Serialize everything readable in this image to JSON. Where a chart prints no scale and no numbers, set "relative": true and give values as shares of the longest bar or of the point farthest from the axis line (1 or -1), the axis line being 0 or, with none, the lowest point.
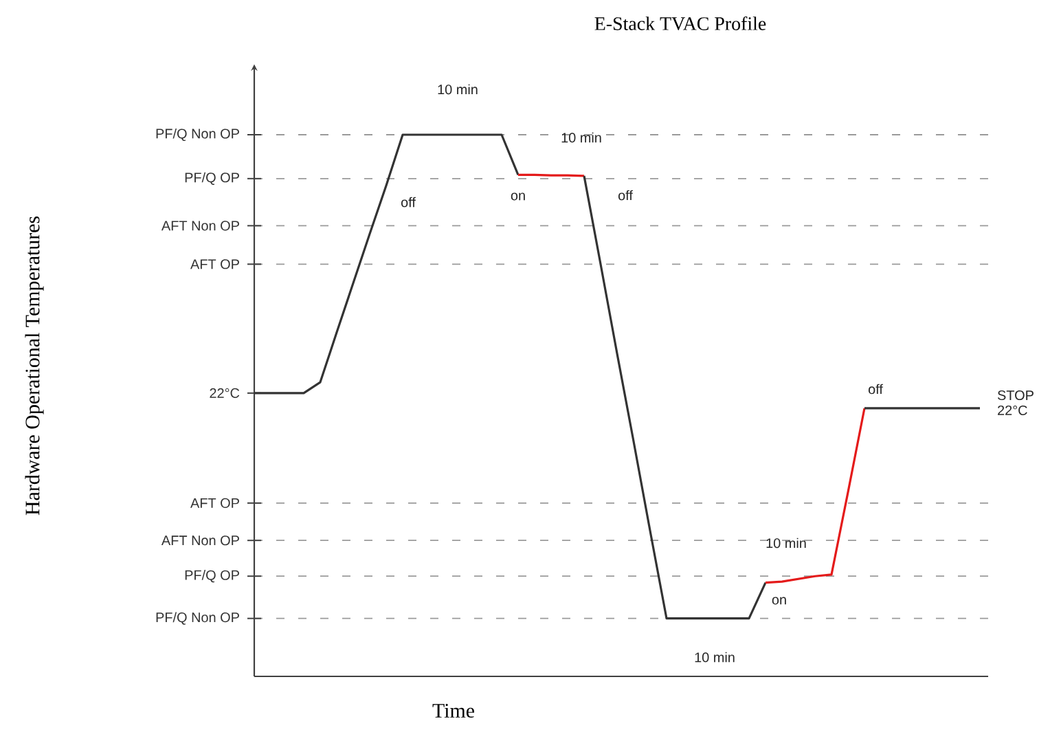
{
  "chart_data": {
    "type": "line",
    "title": "E-Stack TVAC Profile",
    "xlabel": "Time",
    "relative": true,
    "line_style": "solid",
    "categories": [
      null,
      null,
      null,
      null,
      null,
      null,
      null,
      null,
      null,
      null,
      null,
      null,
      null,
      null,
      null,
      null,
      null,
      null,
      null,
      null,
      null,
      null,
      null,
      null,
      null,
      null,
      null,
      null,
      null,
      null,
      null,
      null,
      null,
      null,
      null,
      null,
      null,
      null,
      null,
      null,
      null,
      null,
      null,
      null,
      null
    ],
    "series": [
      {
        "color": "#333333",
        "values": [
          0.523,
          0.523,
          0.523,
          0.523,
          0.543,
          0.635,
          0.726,
          0.817,
          0.906,
          1.0,
          1.0,
          1.0,
          1.0,
          1.0,
          1.0,
          1.0,
          0.926,
          null,
          null,
          null,
          null,
          null,
          null,
          null,
          null,
          null,
          null,
          null,
          null,
          null,
          null,
          null,
          null,
          null,
          null,
          null,
          null,
          null,
          null,
          null,
          null,
          null,
          null,
          null,
          null
        ]
      },
      {
        "color": "#e41a1a",
        "values": [
          null,
          null,
          null,
          null,
          null,
          null,
          null,
          null,
          null,
          null,
          null,
          null,
          null,
          null,
          null,
          null,
          0.926,
          0.926,
          0.925,
          0.925,
          0.924,
          null,
          null,
          null,
          null,
          null,
          null,
          null,
          null,
          null,
          null,
          null,
          null,
          null,
          null,
          null,
          null,
          null,
          null,
          null,
          null,
          null,
          null,
          null,
          null
        ]
      },
      {
        "color": "#333333",
        "values": [
          null,
          null,
          null,
          null,
          null,
          null,
          null,
          null,
          null,
          null,
          null,
          null,
          null,
          null,
          null,
          null,
          null,
          null,
          null,
          null,
          0.924,
          0.761,
          0.596,
          0.434,
          0.269,
          0.107,
          0.107,
          0.107,
          0.107,
          0.107,
          0.107,
          0.173,
          null,
          null,
          null,
          null,
          null,
          null,
          null,
          null,
          null,
          null,
          null,
          null,
          null
        ]
      },
      {
        "color": "#e41a1a",
        "values": [
          null,
          null,
          null,
          null,
          null,
          null,
          null,
          null,
          null,
          null,
          null,
          null,
          null,
          null,
          null,
          null,
          null,
          null,
          null,
          null,
          null,
          null,
          null,
          null,
          null,
          null,
          null,
          null,
          null,
          null,
          null,
          0.173,
          0.175,
          0.18,
          0.185,
          0.188,
          0.34,
          0.495,
          null,
          null,
          null,
          null,
          null,
          null,
          null
        ]
      },
      {
        "color": "#333333",
        "values": [
          null,
          null,
          null,
          null,
          null,
          null,
          null,
          null,
          null,
          null,
          null,
          null,
          null,
          null,
          null,
          null,
          null,
          null,
          null,
          null,
          null,
          null,
          null,
          null,
          null,
          null,
          null,
          null,
          null,
          null,
          null,
          null,
          null,
          null,
          null,
          null,
          null,
          0.495,
          0.495,
          0.495,
          0.495,
          0.495,
          0.495,
          0.495,
          0.495
        ]
      }
    ],
    "ref_lines": [
      {
        "axis": "y",
        "value": 1.0,
        "label": "PF/Q Non OP",
        "color": "#9a9a9a",
        "line_style": "dashed"
      },
      {
        "axis": "y",
        "value": 0.919,
        "label": "PF/Q OP",
        "color": "#9a9a9a",
        "line_style": "dashed"
      },
      {
        "axis": "y",
        "value": 0.832,
        "label": "AFT Non OP",
        "color": "#9a9a9a",
        "line_style": "dashed"
      },
      {
        "axis": "y",
        "value": 0.761,
        "label": "AFT OP",
        "color": "#9a9a9a",
        "line_style": "dashed"
      },
      {
        "axis": "y",
        "value": 0.523,
        "label": "22°C"
      },
      {
        "axis": "y",
        "value": 0.32,
        "label": "AFT OP",
        "color": "#9a9a9a",
        "line_style": "dashed"
      },
      {
        "axis": "y",
        "value": 0.251,
        "label": "AFT Non OP",
        "color": "#9a9a9a",
        "line_style": "dashed"
      },
      {
        "axis": "y",
        "value": 0.185,
        "label": "PF/Q OP",
        "color": "#9a9a9a",
        "line_style": "dashed"
      },
      {
        "axis": "y",
        "value": 0.107,
        "label": "PF/Q Non OP",
        "color": "#9a9a9a",
        "line_style": "dashed"
      }
    ],
    "annotations": [
      "10 min",
      "10 min",
      "off",
      "on",
      "off",
      "10 min",
      "10 min",
      "on",
      "off",
      "STOP 22°C",
      "Hardware Operational Temperatures"
    ]
  }
}
